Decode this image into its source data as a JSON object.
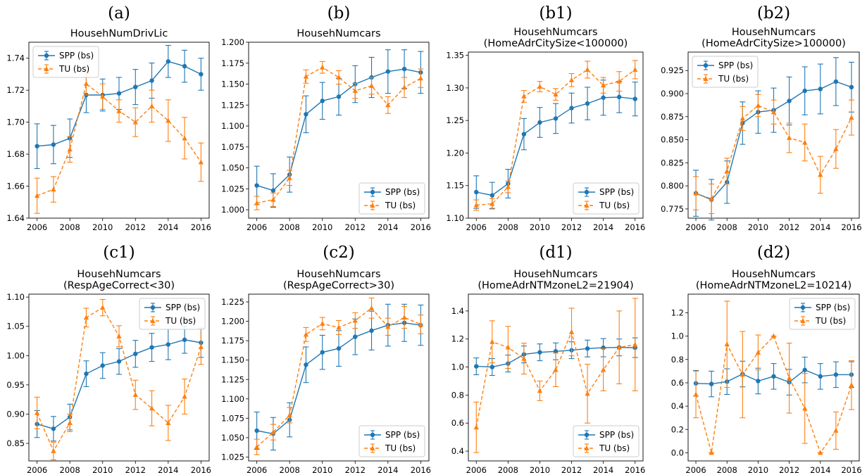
{
  "colors": {
    "spp": "#1f77b4",
    "tu": "#ff7f0e"
  },
  "chart_data": [
    {
      "type": "line",
      "panel": "(a)",
      "title": [
        "HousehNumDrivLic"
      ],
      "x": [
        2006,
        2007,
        2008,
        2009,
        2010,
        2011,
        2012,
        2013,
        2014,
        2015,
        2016
      ],
      "xticks": [
        "2006",
        "2008",
        "2010",
        "2012",
        "2014",
        "2016"
      ],
      "ylim": [
        1.64,
        1.75
      ],
      "yticks": [
        "1.64",
        "1.66",
        "1.68",
        "1.70",
        "1.72",
        "1.74"
      ],
      "legend": "top-left",
      "series": [
        {
          "name": "SPP (bs)",
          "values": [
            1.685,
            1.686,
            1.69,
            1.717,
            1.717,
            1.718,
            1.722,
            1.726,
            1.738,
            1.735,
            1.73
          ],
          "err": [
            0.014,
            0.012,
            0.012,
            0.011,
            0.01,
            0.01,
            0.011,
            0.011,
            0.01,
            0.01,
            0.01
          ]
        },
        {
          "name": "TU (bs)",
          "values": [
            1.654,
            1.658,
            1.683,
            1.724,
            1.716,
            1.707,
            1.7,
            1.71,
            1.701,
            1.69,
            1.675
          ],
          "err": [
            0.011,
            0.008,
            0.008,
            0.007,
            0.008,
            0.007,
            0.009,
            0.01,
            0.013,
            0.013,
            0.012
          ]
        }
      ]
    },
    {
      "type": "line",
      "panel": "(b)",
      "title": [
        "HousehNumcars"
      ],
      "x": [
        2006,
        2007,
        2008,
        2009,
        2010,
        2011,
        2012,
        2013,
        2014,
        2015,
        2016
      ],
      "xticks": [
        "2006",
        "2008",
        "2010",
        "2012",
        "2014",
        "2016"
      ],
      "ylim": [
        0.99,
        1.2
      ],
      "yticks": [
        "1.000",
        "1.025",
        "1.050",
        "1.075",
        "1.100",
        "1.125",
        "1.150",
        "1.175",
        "1.200"
      ],
      "legend": "bottom-right",
      "series": [
        {
          "name": "SPP (bs)",
          "values": [
            1.029,
            1.023,
            1.042,
            1.114,
            1.13,
            1.135,
            1.15,
            1.158,
            1.165,
            1.168,
            1.164
          ],
          "err": [
            0.023,
            0.02,
            0.021,
            0.022,
            0.022,
            0.022,
            0.022,
            0.024,
            0.026,
            0.023,
            0.025
          ]
        },
        {
          "name": "TU (bs)",
          "values": [
            1.008,
            1.012,
            1.038,
            1.159,
            1.17,
            1.158,
            1.142,
            1.148,
            1.125,
            1.146,
            1.157
          ],
          "err": [
            0.008,
            0.008,
            0.009,
            0.008,
            0.007,
            0.008,
            0.009,
            0.01,
            0.01,
            0.012,
            0.011
          ]
        }
      ]
    },
    {
      "type": "line",
      "panel": "(b1)",
      "title": [
        "HousehNumcars",
        "(HomeAdrCitySize<100000)"
      ],
      "x": [
        2006,
        2007,
        2008,
        2009,
        2010,
        2011,
        2012,
        2013,
        2014,
        2015,
        2016
      ],
      "xticks": [
        "2006",
        "2008",
        "2010",
        "2012",
        "2014",
        "2016"
      ],
      "ylim": [
        1.1,
        1.355
      ],
      "yticks": [
        "1.10",
        "1.15",
        "1.20",
        "1.25",
        "1.30",
        "1.35"
      ],
      "legend": "bottom-right",
      "series": [
        {
          "name": "SPP (bs)",
          "values": [
            1.14,
            1.135,
            1.153,
            1.229,
            1.247,
            1.253,
            1.269,
            1.276,
            1.285,
            1.286,
            1.283
          ],
          "err": [
            0.025,
            0.02,
            0.022,
            0.024,
            0.023,
            0.023,
            0.023,
            0.025,
            0.027,
            0.024,
            0.026
          ]
        },
        {
          "name": "TU (bs)",
          "values": [
            1.12,
            1.122,
            1.148,
            1.287,
            1.302,
            1.29,
            1.312,
            1.328,
            1.304,
            1.31,
            1.328
          ],
          "err": [
            0.008,
            0.008,
            0.009,
            0.009,
            0.008,
            0.009,
            0.01,
            0.013,
            0.012,
            0.015,
            0.014
          ]
        }
      ]
    },
    {
      "type": "line",
      "panel": "(b2)",
      "title": [
        "HousehNumcars",
        "(HomeAdrCitySize>100000)"
      ],
      "x": [
        2006,
        2007,
        2008,
        2009,
        2010,
        2011,
        2012,
        2013,
        2014,
        2015,
        2016
      ],
      "xticks": [
        "2006",
        "2008",
        "2010",
        "2012",
        "2014",
        "2016"
      ],
      "ylim": [
        0.765,
        0.945
      ],
      "yticks": [
        "0.775",
        "0.800",
        "0.825",
        "0.850",
        "0.875",
        "0.900",
        "0.925"
      ],
      "legend": "top-left",
      "series": [
        {
          "name": "SPP (bs)",
          "values": [
            0.792,
            0.785,
            0.804,
            0.868,
            0.88,
            0.882,
            0.892,
            0.903,
            0.905,
            0.913,
            0.907
          ],
          "err": [
            0.025,
            0.022,
            0.023,
            0.023,
            0.023,
            0.024,
            0.026,
            0.026,
            0.027,
            0.026,
            0.027
          ]
        },
        {
          "name": "TU (bs)",
          "values": [
            0.792,
            0.786,
            0.816,
            0.873,
            0.887,
            0.88,
            0.852,
            0.847,
            0.812,
            0.84,
            0.874
          ],
          "err": [
            0.018,
            0.016,
            0.014,
            0.013,
            0.012,
            0.013,
            0.016,
            0.02,
            0.02,
            0.021,
            0.019
          ]
        }
      ]
    },
    {
      "type": "line",
      "panel": "(c1)",
      "title": [
        "HousehNumcars",
        "(RespAgeCorrect<30)"
      ],
      "x": [
        2006,
        2007,
        2008,
        2009,
        2010,
        2011,
        2012,
        2013,
        2014,
        2015,
        2016
      ],
      "xticks": [
        "2006",
        "2008",
        "2010",
        "2012",
        "2014",
        "2016"
      ],
      "ylim": [
        0.82,
        1.105
      ],
      "yticks": [
        "0.85",
        "0.90",
        "0.95",
        "1.00",
        "1.05",
        "1.10"
      ],
      "legend": "top-right",
      "series": [
        {
          "name": "SPP (bs)",
          "values": [
            0.883,
            0.875,
            0.895,
            0.969,
            0.983,
            0.99,
            1.003,
            1.014,
            1.019,
            1.027,
            1.022
          ],
          "err": [
            0.023,
            0.021,
            0.022,
            0.022,
            0.022,
            0.022,
            0.023,
            0.024,
            0.026,
            0.023,
            0.025
          ]
        },
        {
          "name": "TU (bs)",
          "values": [
            0.902,
            0.837,
            0.885,
            1.065,
            1.082,
            1.033,
            0.933,
            0.91,
            0.885,
            0.93,
            1.015
          ],
          "err": [
            0.027,
            0.015,
            0.015,
            0.016,
            0.014,
            0.018,
            0.025,
            0.03,
            0.03,
            0.03,
            0.03
          ]
        }
      ]
    },
    {
      "type": "line",
      "panel": "(c2)",
      "title": [
        "HousehNumcars",
        "(RespAgeCorrect>30)"
      ],
      "x": [
        2006,
        2007,
        2008,
        2009,
        2010,
        2011,
        2012,
        2013,
        2014,
        2015,
        2016
      ],
      "xticks": [
        "2006",
        "2008",
        "2010",
        "2012",
        "2014",
        "2016"
      ],
      "ylim": [
        1.02,
        1.235
      ],
      "yticks": [
        "1.025",
        "1.050",
        "1.075",
        "1.100",
        "1.125",
        "1.150",
        "1.175",
        "1.200",
        "1.225"
      ],
      "legend": "bottom-right",
      "series": [
        {
          "name": "SPP (bs)",
          "values": [
            1.059,
            1.055,
            1.073,
            1.144,
            1.16,
            1.165,
            1.18,
            1.188,
            1.195,
            1.198,
            1.195
          ],
          "err": [
            0.024,
            0.021,
            0.022,
            0.023,
            0.022,
            0.023,
            0.023,
            0.025,
            0.027,
            0.024,
            0.026
          ]
        },
        {
          "name": "TU (bs)",
          "values": [
            1.038,
            1.057,
            1.079,
            1.183,
            1.197,
            1.192,
            1.201,
            1.217,
            1.193,
            1.205,
            1.196
          ],
          "err": [
            0.01,
            0.01,
            0.01,
            0.009,
            0.008,
            0.009,
            0.01,
            0.013,
            0.011,
            0.014,
            0.012
          ]
        }
      ]
    },
    {
      "type": "line",
      "panel": "(d1)",
      "title": [
        "HousehNumcars",
        "(HomeAdrNTMzoneL2=21904)"
      ],
      "x": [
        2006,
        2007,
        2008,
        2009,
        2010,
        2011,
        2012,
        2013,
        2014,
        2015,
        2016
      ],
      "xticks": [
        "2006",
        "2008",
        "2010",
        "2012",
        "2014",
        "2016"
      ],
      "ylim": [
        0.33,
        1.52
      ],
      "yticks": [
        "0.4",
        "0.6",
        "0.8",
        "1.0",
        "1.2",
        "1.4"
      ],
      "legend": "bottom-right",
      "series": [
        {
          "name": "SPP (bs)",
          "values": [
            1.005,
            1.0,
            1.025,
            1.09,
            1.105,
            1.112,
            1.12,
            1.132,
            1.138,
            1.14,
            1.138
          ],
          "err": [
            0.06,
            0.06,
            0.06,
            0.06,
            0.06,
            0.06,
            0.06,
            0.06,
            0.065,
            0.06,
            0.07
          ]
        },
        {
          "name": "TU (bs)",
          "values": [
            0.57,
            1.18,
            1.14,
            1.06,
            0.83,
            0.98,
            1.25,
            0.81,
            0.98,
            1.14,
            1.16
          ],
          "err": [
            0.18,
            0.15,
            0.15,
            0.11,
            0.07,
            0.12,
            0.17,
            0.21,
            0.15,
            0.26,
            0.33
          ]
        }
      ]
    },
    {
      "type": "line",
      "panel": "(d2)",
      "title": [
        "HousehNumcars",
        "(HomeAdrNTMzoneL2=10214)"
      ],
      "x": [
        2006,
        2007,
        2008,
        2009,
        2010,
        2011,
        2012,
        2013,
        2014,
        2015,
        2016
      ],
      "xticks": [
        "2006",
        "2008",
        "2010",
        "2012",
        "2014",
        "2016"
      ],
      "ylim": [
        -0.07,
        1.36
      ],
      "yticks": [
        "0.0",
        "0.2",
        "0.4",
        "0.6",
        "0.8",
        "1.0",
        "1.2"
      ],
      "legend": "top-right",
      "series": [
        {
          "name": "SPP (bs)",
          "values": [
            0.595,
            0.59,
            0.61,
            0.675,
            0.615,
            0.655,
            0.605,
            0.71,
            0.655,
            0.67,
            0.67
          ],
          "err": [
            0.11,
            0.11,
            0.11,
            0.11,
            0.11,
            0.11,
            0.11,
            0.11,
            0.11,
            0.11,
            0.11
          ]
        },
        {
          "name": "TU (bs)",
          "values": [
            0.5,
            0.0,
            0.93,
            0.67,
            0.86,
            1.0,
            0.64,
            0.38,
            0.0,
            0.19,
            0.58
          ],
          "err": [
            0.2,
            0.0,
            0.37,
            0.37,
            0.15,
            0.0,
            0.3,
            0.3,
            0.0,
            0.16,
            0.21
          ]
        }
      ]
    }
  ]
}
